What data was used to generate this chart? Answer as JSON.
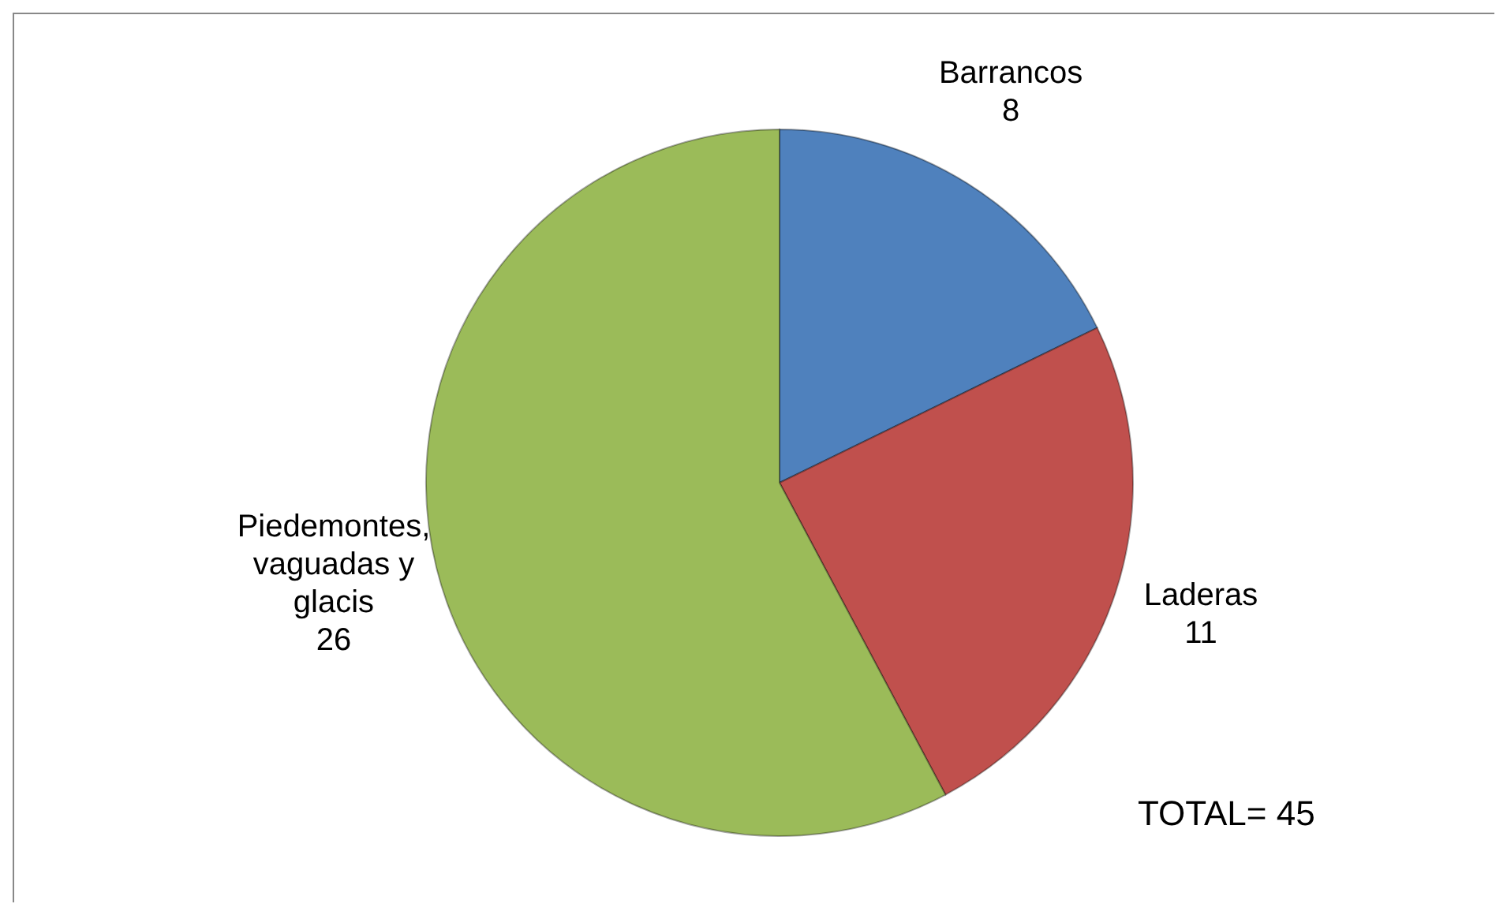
{
  "chart_data": {
    "type": "pie",
    "categories": [
      "Barrancos",
      "Laderas",
      "Piedemontes, vaguadas y glacis"
    ],
    "values": [
      8,
      11,
      26
    ],
    "colors": [
      "#4f81bd",
      "#c0504d",
      "#9bbb59"
    ],
    "data_labels": true,
    "annotations": [
      "TOTAL= 45"
    ]
  }
}
